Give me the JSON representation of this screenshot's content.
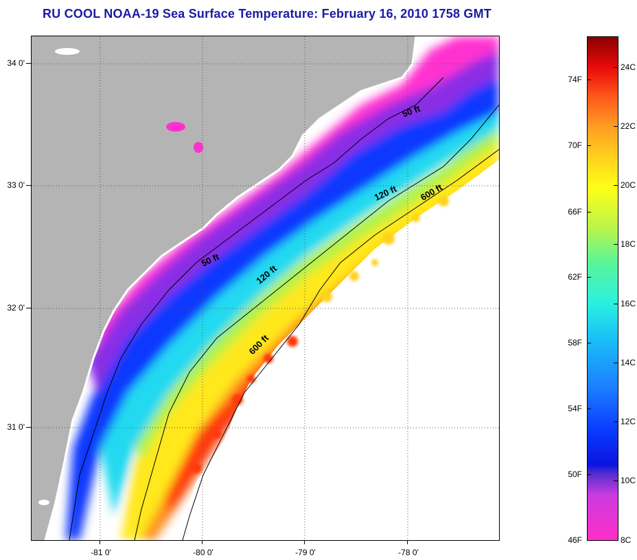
{
  "title": "RU COOL  NOAA-19  Sea Surface Temperature:  February 16, 2010 1758 GMT",
  "map": {
    "lat_labels": [
      "34 0'",
      "33 0'",
      "32 0'",
      "31 0'"
    ],
    "lon_labels": [
      "-81 0'",
      "-80 0'",
      "-79 0'",
      "-78 0'"
    ],
    "contour_labels": [
      "50 ft",
      "120 ft",
      "600 ft",
      "50 ft",
      "120 ft",
      "600 ft"
    ],
    "colors": {
      "land": "#b4b4b4",
      "cloud": "#ffffff"
    }
  },
  "colorbar": {
    "fahrenheit_labels": [
      "74F",
      "70F",
      "66F",
      "62F",
      "58F",
      "54F",
      "50F",
      "46F"
    ],
    "celsius_labels": [
      "24C",
      "22C",
      "20C",
      "18C",
      "16C",
      "14C",
      "12C",
      "10C",
      "8C"
    ]
  }
}
